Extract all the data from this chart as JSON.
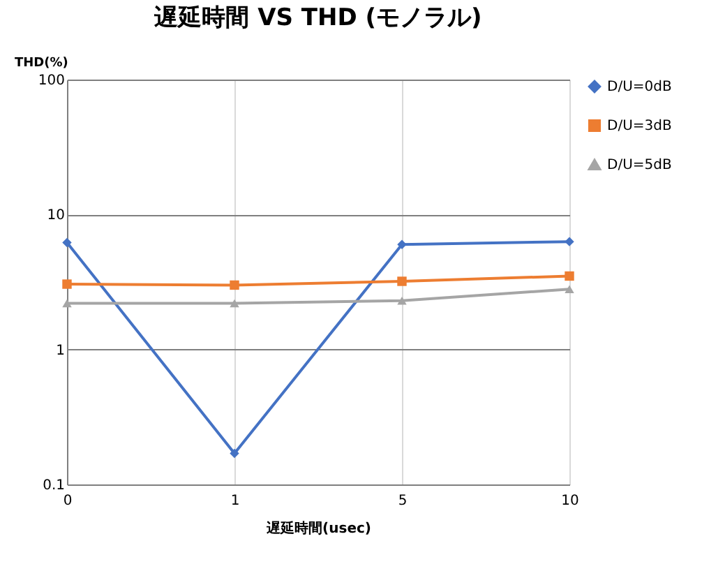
{
  "chart_data": {
    "type": "line",
    "title": "遅延時間 VS THD (モノラル)",
    "xlabel": "遅延時間(usec)",
    "ylabel": "THD(%)",
    "categories": [
      "0",
      "1",
      "5",
      "10"
    ],
    "log": true,
    "ylim": [
      0.1,
      100
    ],
    "yticks": [
      0.1,
      1,
      10,
      100
    ],
    "grid": true,
    "legend": "right",
    "series": [
      {
        "name": "D/U=0dB",
        "color": "#4472c4",
        "marker": "diamond",
        "values": [
          6.2,
          0.17,
          6.0,
          6.3
        ]
      },
      {
        "name": "D/U=3dB",
        "color": "#ed7d31",
        "marker": "square",
        "values": [
          3.05,
          3.0,
          3.2,
          3.5
        ]
      },
      {
        "name": "D/U=5dB",
        "color": "#a5a5a5",
        "marker": "triangle",
        "values": [
          2.2,
          2.2,
          2.3,
          2.8
        ]
      }
    ]
  }
}
